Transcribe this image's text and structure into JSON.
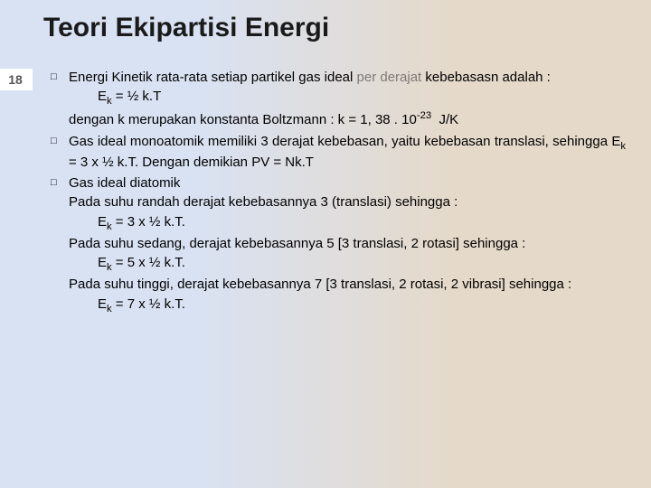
{
  "page_number": "18",
  "title": "Teori Ekipartisi Energi",
  "items": [
    {
      "lead_html": "Energi Kinetik rata-rata setiap partikel gas ideal <span class='muted'>per derajat</span> kebebasasn adalah :",
      "lead_justify": true,
      "lines": [
        {
          "text_html": "E<span class='sub'>k</span> = ½ k.T",
          "indent": true
        },
        {
          "text_html": "dengan k merupakan konstanta Boltzmann : k = 1, 38 . 10<span class='sup'>-23</span>&nbsp; J/K",
          "indent": false
        }
      ]
    },
    {
      "lead_html": "Gas ideal monoatomik memiliki 3 derajat kebebasan, yaitu kebebasan translasi, sehingga E<span class='sub'>k</span> = 3 x ½ k.T. Dengan demikian PV = Nk.T",
      "lead_justify": true,
      "lines": []
    },
    {
      "lead_html": "Gas ideal diatomik",
      "lead_justify": false,
      "lines": [
        {
          "text_html": "Pada suhu randah derajat kebebasannya 3 (translasi) sehingga :",
          "indent": false
        },
        {
          "text_html": "E<span class='sub'>k</span> = 3 x ½ k.T.",
          "indent": true
        },
        {
          "text_html": "Pada suhu sedang, derajat kebebasannya 5 [3 translasi, 2 rotasi] sehingga :",
          "indent": false
        },
        {
          "text_html": "E<span class='sub'>k</span> = 5 x ½ k.T.",
          "indent": true
        },
        {
          "text_html": "Pada suhu tinggi, derajat kebebasannya 7 [3 translasi, 2 rotasi, 2 vibrasi] sehingga :",
          "indent": false
        },
        {
          "text_html": "E<span class='sub'>k</span> = 7 x ½ k.T.",
          "indent": true
        }
      ]
    }
  ],
  "colors": {
    "bg_left": "#d9e2f3",
    "bg_right": "#e5d9c9",
    "page_num_bg": "#ffffff",
    "text": "#000000"
  }
}
